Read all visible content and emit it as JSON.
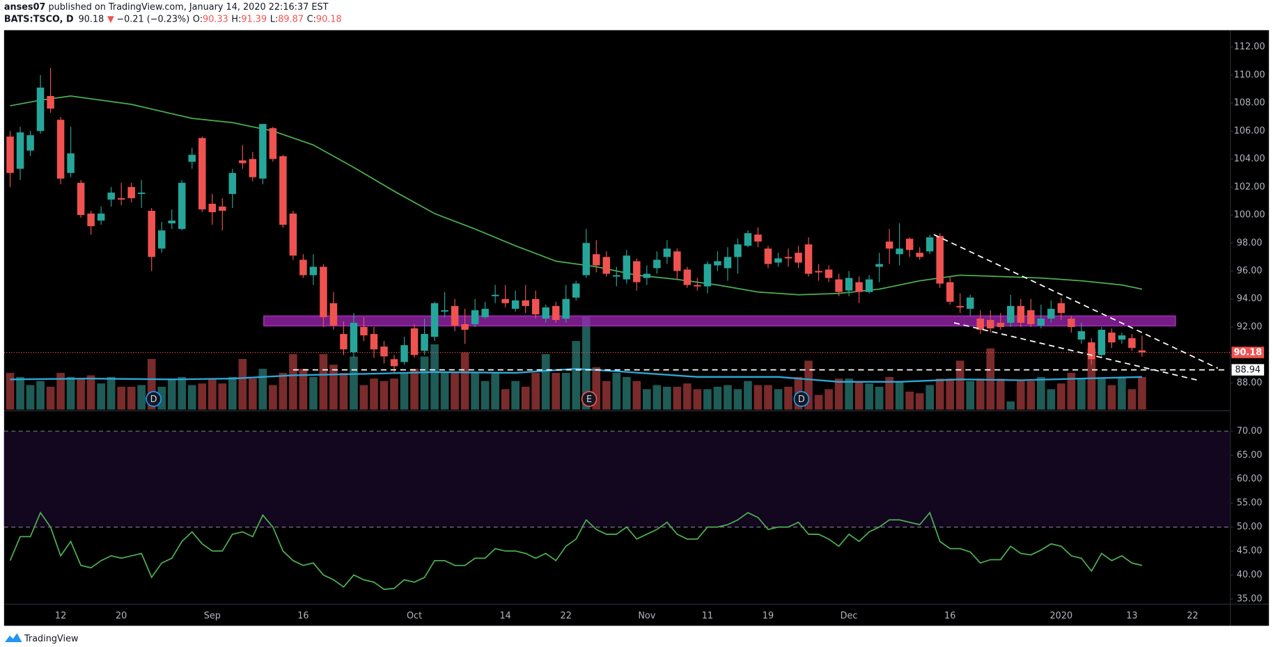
{
  "header": {
    "author": "anses07",
    "published": " published on TradingView.com, January 14, 2020 22:16:37 EST",
    "symbol": "BATS:TSCO, D",
    "last": "90.18",
    "arrow": "▼",
    "change": "−0.21 (−0.23%)",
    "ohlc": [
      {
        "key": "O:",
        "value": "90.33"
      },
      {
        "key": "H:",
        "value": "91.39"
      },
      {
        "key": "L:",
        "value": "89.87"
      },
      {
        "key": "C:",
        "value": "90.18"
      }
    ]
  },
  "chart_data": [
    {
      "type": "candlestick",
      "xlim": [
        -0.6,
        120.7
      ],
      "ylim": [
        86.1,
        113.2
      ],
      "xticks": [
        {
          "value": 5,
          "label": "12"
        },
        {
          "value": 11,
          "label": "20"
        },
        {
          "value": 20,
          "label": "Sep"
        },
        {
          "value": 29,
          "label": "16"
        },
        {
          "value": 40,
          "label": "Oct"
        },
        {
          "value": 49,
          "label": "14"
        },
        {
          "value": 55,
          "label": "22"
        },
        {
          "value": 63,
          "label": "Nov"
        },
        {
          "value": 69,
          "label": "11"
        },
        {
          "value": 75,
          "label": "19"
        },
        {
          "value": 83,
          "label": "Dec"
        },
        {
          "value": 93,
          "label": "16"
        },
        {
          "value": 104,
          "label": "2020"
        },
        {
          "value": 111,
          "label": "13"
        },
        {
          "value": 117,
          "label": "22"
        }
      ],
      "yticks": [
        {
          "value": 88,
          "label": "88.00"
        },
        {
          "value": 90,
          "label": "90.00"
        },
        {
          "value": 92,
          "label": "92.00"
        },
        {
          "value": 94,
          "label": "94.00"
        },
        {
          "value": 96,
          "label": "96.00"
        },
        {
          "value": 98,
          "label": "98.00"
        },
        {
          "value": 100,
          "label": "100.00"
        },
        {
          "value": 102,
          "label": "102.00"
        },
        {
          "value": 104,
          "label": "104.00"
        },
        {
          "value": 106,
          "label": "106.00"
        },
        {
          "value": 108,
          "label": "108.00"
        },
        {
          "value": 110,
          "label": "110.00"
        },
        {
          "value": 112,
          "label": "112.00"
        }
      ],
      "up_color": "#26a69a",
      "down_color": "#ef5350",
      "volume_up_color": "#1f5b57",
      "volume_down_color": "#7a2b2b",
      "open": [
        105.6,
        103.3,
        104.6,
        106,
        108.5,
        106.8,
        103,
        102.3,
        100.1,
        99.6,
        101.1,
        101.2,
        102,
        101.5,
        100.3,
        97.6,
        99.4,
        99,
        103.8,
        105.5,
        100.8,
        100.6,
        101.5,
        103.9,
        104,
        102.6,
        106.2,
        104.2,
        100.1,
        96.8,
        95.7,
        96.3,
        93.7,
        91.5,
        90.2,
        92,
        91.5,
        90.6,
        89.7,
        89.5,
        91.9,
        90.3,
        91.3,
        93.1,
        93.5,
        92.2,
        92.2,
        92.7,
        94.2,
        94,
        93.3,
        93.9,
        94,
        92.6,
        93.5,
        92.6,
        94.1,
        95.7,
        97.2,
        97,
        95.6,
        95.4,
        96.7,
        95.5,
        96.2,
        97,
        97.4,
        96.1,
        95,
        94.9,
        96.4,
        96.2,
        97,
        97.8,
        98.6,
        97.6,
        96.6,
        97,
        97.3,
        97.9,
        96,
        96.1,
        95.4,
        94.6,
        95.2,
        94.5,
        96.3,
        98.1,
        97.2,
        98.3,
        97.3,
        97.4,
        98.5,
        95.2,
        93.5,
        93.3,
        92.6,
        92.5,
        92.3,
        92.3,
        93.5,
        93.2,
        92.1,
        92.6,
        93.7,
        92.6,
        91.1,
        90.9,
        90,
        91.6,
        91.1,
        91.2,
        90.33
      ],
      "high": [
        106,
        106.3,
        106,
        110,
        110.5,
        107,
        106.3,
        102.5,
        100.3,
        100.6,
        102,
        102.3,
        102.3,
        102.5,
        100.5,
        99.5,
        100.4,
        102.5,
        104.8,
        105.6,
        101.5,
        101.2,
        103.3,
        105,
        104.5,
        106.5,
        106.3,
        104.3,
        100.3,
        97.2,
        97.2,
        96.5,
        94.5,
        92.4,
        93,
        92.7,
        92,
        91,
        90,
        91.3,
        92.2,
        92.6,
        93.8,
        94.5,
        94,
        93.3,
        94,
        93.8,
        95,
        95,
        94.6,
        95,
        94.6,
        93.6,
        93.8,
        95,
        95.3,
        99,
        98.2,
        97.4,
        96.3,
        97.5,
        96.9,
        96.4,
        97.4,
        98.2,
        97.6,
        96.3,
        95.5,
        96.7,
        97.4,
        97.7,
        98.3,
        98.9,
        99.1,
        97.8,
        97.3,
        97.6,
        97.8,
        98.4,
        96.5,
        96.4,
        95.8,
        96,
        95.6,
        95.7,
        97.3,
        99,
        99.4,
        98.4,
        97.7,
        98.6,
        98.7,
        95.6,
        94.4,
        94.3,
        93.2,
        93.2,
        93,
        94.3,
        94,
        94,
        93.6,
        93.9,
        94.1,
        92.8,
        92.3,
        91.2,
        92,
        91.9,
        91.6,
        91.5,
        91.39
      ],
      "low": [
        102,
        102.5,
        104.2,
        105.8,
        107.3,
        102.2,
        102.7,
        99.8,
        98.6,
        99.3,
        100.6,
        100.7,
        100.9,
        100.5,
        96,
        97.3,
        99,
        98.9,
        103.3,
        100.2,
        99.3,
        98.9,
        100.5,
        103.3,
        102.4,
        102.2,
        103.8,
        99.1,
        96.8,
        95.5,
        95,
        92,
        91.8,
        90,
        89.8,
        91,
        89.8,
        89.4,
        88.7,
        89.3,
        89.8,
        90,
        91,
        92.7,
        91.7,
        90.8,
        92,
        92.6,
        93.7,
        93.4,
        93.1,
        93,
        92.6,
        92.3,
        92.3,
        92.3,
        93.9,
        95.5,
        95.9,
        95.6,
        94.9,
        95.1,
        94.6,
        95,
        95.8,
        96.5,
        95.4,
        94.8,
        94.6,
        94.4,
        96,
        95.3,
        95.8,
        97.7,
        97.7,
        96.2,
        96.3,
        96.3,
        96.2,
        95.6,
        95.3,
        95.2,
        94.2,
        94.2,
        93.7,
        94.4,
        95.2,
        96.5,
        96.4,
        97,
        96.8,
        97.2,
        94.8,
        93.6,
        93,
        92.8,
        91.5,
        91.6,
        91.8,
        92,
        92,
        92,
        91.9,
        92.3,
        92.5,
        91.6,
        90.8,
        89.3,
        89.8,
        90.5,
        90.8,
        90.3,
        89.87
      ],
      "close": [
        103,
        105.9,
        105.7,
        109.1,
        107.6,
        102.6,
        104.4,
        100,
        99.2,
        100.1,
        101.6,
        101.1,
        101.2,
        101.6,
        97,
        98.9,
        99.6,
        102.3,
        104.3,
        100.4,
        100.2,
        100.3,
        103,
        103.7,
        102.7,
        106.5,
        104,
        99.3,
        97.1,
        95.7,
        96.3,
        92.7,
        92.1,
        90.4,
        92.3,
        91.4,
        90.4,
        89.9,
        89.2,
        90.7,
        90,
        91.5,
        93.7,
        93.2,
        92.1,
        91.8,
        93.2,
        93.3,
        94.3,
        93.7,
        93.9,
        93.5,
        92.9,
        93.4,
        92.5,
        94,
        95.1,
        98,
        96.4,
        95.8,
        95.7,
        97.1,
        95.2,
        95.8,
        96.8,
        97.6,
        96,
        95,
        94.9,
        96.5,
        96.7,
        97,
        97.9,
        98.7,
        98.1,
        96.5,
        96.9,
        96.9,
        96.6,
        95.8,
        95.9,
        95.5,
        94.5,
        95.5,
        94.5,
        95.4,
        96.5,
        97.6,
        97.6,
        97.5,
        97,
        98.4,
        95.1,
        93.8,
        93.4,
        94.1,
        91.8,
        91.9,
        92,
        93.5,
        92.3,
        92.2,
        92.6,
        93.3,
        93,
        92,
        91.7,
        89.7,
        91.8,
        90.9,
        91.4,
        90.5,
        90.18
      ],
      "volume": [
        45,
        40,
        30,
        35,
        28,
        45,
        40,
        38,
        42,
        32,
        40,
        28,
        28,
        30,
        62,
        28,
        38,
        40,
        30,
        32,
        38,
        32,
        40,
        62,
        38,
        50,
        30,
        45,
        68,
        50,
        40,
        68,
        55,
        45,
        65,
        30,
        38,
        35,
        38,
        45,
        50,
        65,
        80,
        45,
        45,
        70,
        45,
        35,
        45,
        25,
        35,
        28,
        45,
        68,
        45,
        45,
        84,
        114,
        52,
        35,
        45,
        40,
        35,
        25,
        30,
        28,
        28,
        32,
        25,
        25,
        28,
        30,
        25,
        35,
        30,
        30,
        25,
        28,
        40,
        60,
        18,
        25,
        38,
        38,
        35,
        32,
        28,
        40,
        35,
        22,
        20,
        30,
        38,
        38,
        60,
        35,
        38,
        75,
        38,
        10,
        35,
        35,
        40,
        25,
        32,
        45,
        38,
        75,
        38,
        30,
        40,
        25,
        40
      ],
      "volume_ma": {
        "color": "#2ea8d8",
        "x": [
          0,
          8,
          16,
          22,
          28,
          36,
          42,
          50,
          56,
          60,
          68,
          76,
          82,
          88,
          94,
          100,
          106,
          112
        ],
        "values": [
          37,
          38,
          37,
          38,
          42,
          44,
          46,
          45,
          50,
          47,
          40,
          40,
          34,
          34,
          37,
          36,
          38,
          40
        ]
      },
      "ma": {
        "color": "#4caf50",
        "x": [
          0,
          3,
          6,
          12,
          18,
          22,
          26,
          30,
          34,
          38,
          42,
          46,
          50,
          54,
          58,
          62,
          66,
          70,
          74,
          78,
          82,
          86,
          90,
          94,
          98,
          102,
          106,
          110,
          112
        ],
        "values": [
          107.8,
          108.2,
          108.5,
          107.9,
          106.9,
          106.6,
          106,
          105,
          103.4,
          101.7,
          100.1,
          99,
          97.8,
          96.7,
          96.3,
          95.7,
          95.4,
          95,
          94.5,
          94.3,
          94.4,
          94.7,
          95.3,
          95.7,
          95.6,
          95.5,
          95.3,
          95,
          94.7
        ]
      },
      "zone": {
        "x": [
          25.1,
          115.3
        ],
        "y": [
          92.08,
          92.78
        ],
        "color": "#9c27b0"
      },
      "trendlines": [
        {
          "x": [
            91.4,
            119.5
          ],
          "y": [
            98.6,
            89.05
          ]
        },
        {
          "x": [
            93.4,
            117.5
          ],
          "y": [
            92.3,
            88.2
          ]
        }
      ],
      "hline": {
        "value": 88.94,
        "label": "88.94",
        "x": [
          28,
          120.3
        ]
      },
      "last_price": {
        "value": 90.18,
        "label": "90.18",
        "color": "#ef5350"
      },
      "events": [
        {
          "x": 14.2,
          "label": "D",
          "color": "#2196f3"
        },
        {
          "x": 57.3,
          "label": "E",
          "color": "#ef5350"
        },
        {
          "x": 78.3,
          "label": "D",
          "color": "#2196f3"
        }
      ]
    },
    {
      "type": "line",
      "ylim": [
        34,
        74
      ],
      "yticks": [
        {
          "value": 35,
          "label": "35.00"
        },
        {
          "value": 40,
          "label": "40.00"
        },
        {
          "value": 45,
          "label": "45.00"
        },
        {
          "value": 50,
          "label": "50.00"
        },
        {
          "value": 55,
          "label": "55.00"
        },
        {
          "value": 60,
          "label": "60.00"
        },
        {
          "value": 65,
          "label": "65.00"
        },
        {
          "value": 70,
          "label": "70.00"
        }
      ],
      "band": [
        50,
        70
      ],
      "band_color": "#13061f",
      "color": "#4caf50",
      "values": [
        43,
        48,
        48,
        53,
        50,
        44,
        47,
        42,
        41.5,
        43,
        44,
        43.5,
        44,
        44.5,
        39.5,
        42.5,
        43.5,
        47,
        49,
        46.5,
        45,
        45,
        48.5,
        49,
        48,
        52.5,
        50,
        45,
        43,
        42,
        42.5,
        40,
        39,
        37.5,
        40,
        39,
        38.5,
        37,
        37.2,
        39,
        38.5,
        39.5,
        43,
        43,
        42,
        42,
        43.5,
        43.5,
        45.5,
        45,
        45,
        44.5,
        43.5,
        44.5,
        43,
        46,
        47.5,
        51.5,
        49.5,
        48.5,
        48.5,
        50,
        47.5,
        48.5,
        49.5,
        51,
        48.5,
        47.5,
        47.5,
        50,
        50,
        50.5,
        51.5,
        53,
        52,
        49.5,
        50,
        50,
        51,
        48.5,
        48.5,
        47.5,
        46,
        48.5,
        47,
        49,
        50,
        51.5,
        51.5,
        51,
        50.5,
        53,
        47,
        45.5,
        45.5,
        44.8,
        42.5,
        43.2,
        43.2,
        46,
        44.5,
        44.2,
        45.2,
        46.5,
        46,
        44,
        43.5,
        40.8,
        44.5,
        43,
        44,
        42.5,
        42
      ]
    }
  ],
  "footer": {
    "brand": "TradingView"
  }
}
